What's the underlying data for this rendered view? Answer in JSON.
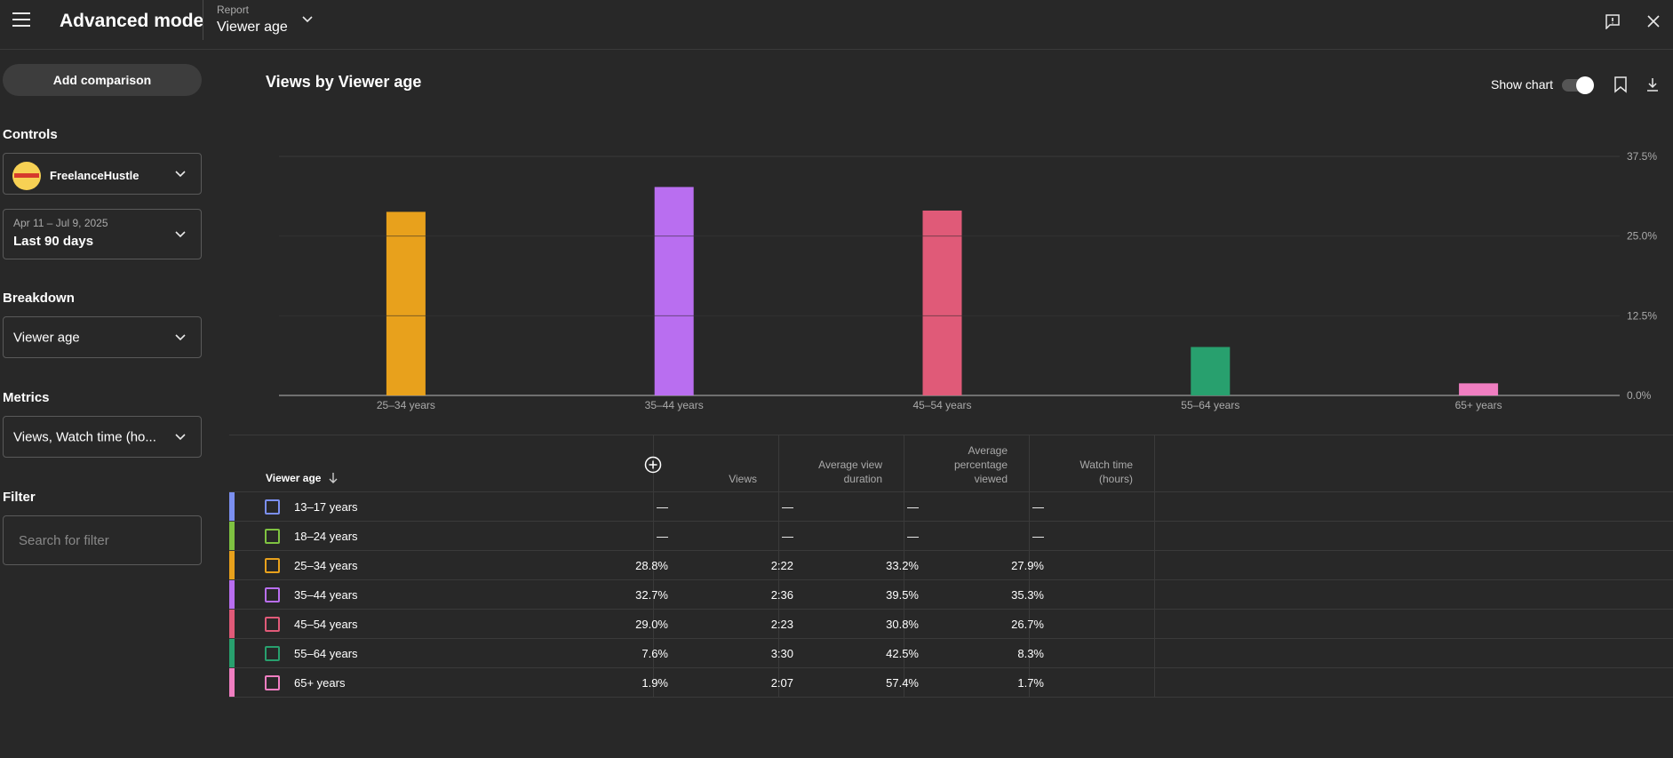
{
  "header": {
    "app_title": "Advanced mode",
    "report_label": "Report",
    "report_value": "Viewer age"
  },
  "sidebar": {
    "add_comparison": "Add comparison",
    "controls_label": "Controls",
    "channel_name": "FreelanceHustle",
    "date_range_small": "Apr 11 – Jul 9, 2025",
    "date_range_main": "Last 90 days",
    "breakdown_label": "Breakdown",
    "breakdown_value": "Viewer age",
    "metrics_label": "Metrics",
    "metrics_value": "Views, Watch time (ho...",
    "filter_label": "Filter",
    "filter_placeholder": "Search for filter"
  },
  "main": {
    "chart_title": "Views by Viewer age",
    "show_chart_label": "Show chart",
    "show_chart_on": true
  },
  "chart_data": {
    "type": "bar",
    "categories": [
      "25–34 years",
      "35–44 years",
      "45–54 years",
      "55–64 years",
      "65+ years"
    ],
    "values": [
      28.8,
      32.7,
      29.0,
      7.6,
      1.9
    ],
    "colors": [
      "#e8a11c",
      "#b96ef0",
      "#e05a78",
      "#28a06e",
      "#f07ec1"
    ],
    "yticks": [
      "37.5%",
      "25.0%",
      "12.5%",
      "0.0%"
    ],
    "ylim": [
      0,
      37.5
    ],
    "grid": true
  },
  "table": {
    "columns": {
      "first": "Viewer age",
      "views": "Views",
      "avg_duration_l1": "Average view",
      "avg_duration_l2": "duration",
      "avg_pct_l1": "Average",
      "avg_pct_l2": "percentage",
      "avg_pct_l3": "viewed",
      "watch_l1": "Watch time",
      "watch_l2": "(hours)"
    },
    "rows": [
      {
        "label": "13–17 years",
        "color": "#7b8ff0",
        "views": "—",
        "avg_duration": "—",
        "avg_pct": "—",
        "watch_time": "—"
      },
      {
        "label": "18–24 years",
        "color": "#7fc241",
        "views": "—",
        "avg_duration": "—",
        "avg_pct": "—",
        "watch_time": "—"
      },
      {
        "label": "25–34 years",
        "color": "#e8a11c",
        "views": "28.8%",
        "avg_duration": "2:22",
        "avg_pct": "33.2%",
        "watch_time": "27.9%"
      },
      {
        "label": "35–44 years",
        "color": "#b96ef0",
        "views": "32.7%",
        "avg_duration": "2:36",
        "avg_pct": "39.5%",
        "watch_time": "35.3%"
      },
      {
        "label": "45–54 years",
        "color": "#e05a78",
        "views": "29.0%",
        "avg_duration": "2:23",
        "avg_pct": "30.8%",
        "watch_time": "26.7%"
      },
      {
        "label": "55–64 years",
        "color": "#28a06e",
        "views": "7.6%",
        "avg_duration": "3:30",
        "avg_pct": "42.5%",
        "watch_time": "8.3%"
      },
      {
        "label": "65+ years",
        "color": "#f07ec1",
        "views": "1.9%",
        "avg_duration": "2:07",
        "avg_pct": "57.4%",
        "watch_time": "1.7%"
      }
    ]
  }
}
